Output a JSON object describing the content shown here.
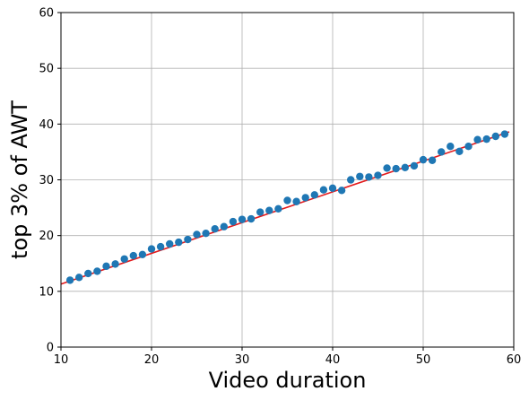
{
  "chart_data": {
    "type": "scatter",
    "xlabel": "Video duration",
    "ylabel": "top 3% of AWT",
    "xlim": [
      10,
      60
    ],
    "ylim": [
      0,
      60
    ],
    "x_ticks": [
      10,
      20,
      30,
      40,
      50,
      60
    ],
    "y_ticks": [
      0,
      10,
      20,
      30,
      40,
      50,
      60
    ],
    "grid": true,
    "colors": {
      "points": "#1f77b4",
      "fit_line": "#e31a1c"
    },
    "series": [
      {
        "type": "scatter",
        "x": [
          11,
          12,
          13,
          14,
          15,
          16,
          17,
          18,
          19,
          20,
          21,
          22,
          23,
          24,
          25,
          26,
          27,
          28,
          29,
          30,
          31,
          32,
          33,
          34,
          35,
          36,
          37,
          38,
          39,
          40,
          41,
          42,
          43,
          44,
          45,
          46,
          47,
          48,
          49,
          50,
          51,
          52,
          53,
          54,
          55,
          56,
          57,
          58,
          59
        ],
        "y": [
          12.0,
          12.5,
          13.2,
          13.6,
          14.5,
          14.9,
          15.8,
          16.4,
          16.6,
          17.6,
          18.0,
          18.5,
          18.8,
          19.3,
          20.2,
          20.4,
          21.2,
          21.6,
          22.5,
          22.9,
          23.0,
          24.2,
          24.5,
          24.8,
          26.3,
          26.1,
          26.8,
          27.3,
          28.2,
          28.5,
          28.1,
          30.0,
          30.6,
          30.5,
          30.8,
          32.1,
          32.0,
          32.2,
          32.5,
          33.6,
          33.5,
          35.0,
          36.0,
          35.1,
          36.0,
          37.2,
          37.3,
          37.8,
          38.2
        ]
      },
      {
        "type": "line",
        "x": [
          10,
          59.5
        ],
        "y": [
          11.3,
          38.6
        ]
      }
    ]
  }
}
